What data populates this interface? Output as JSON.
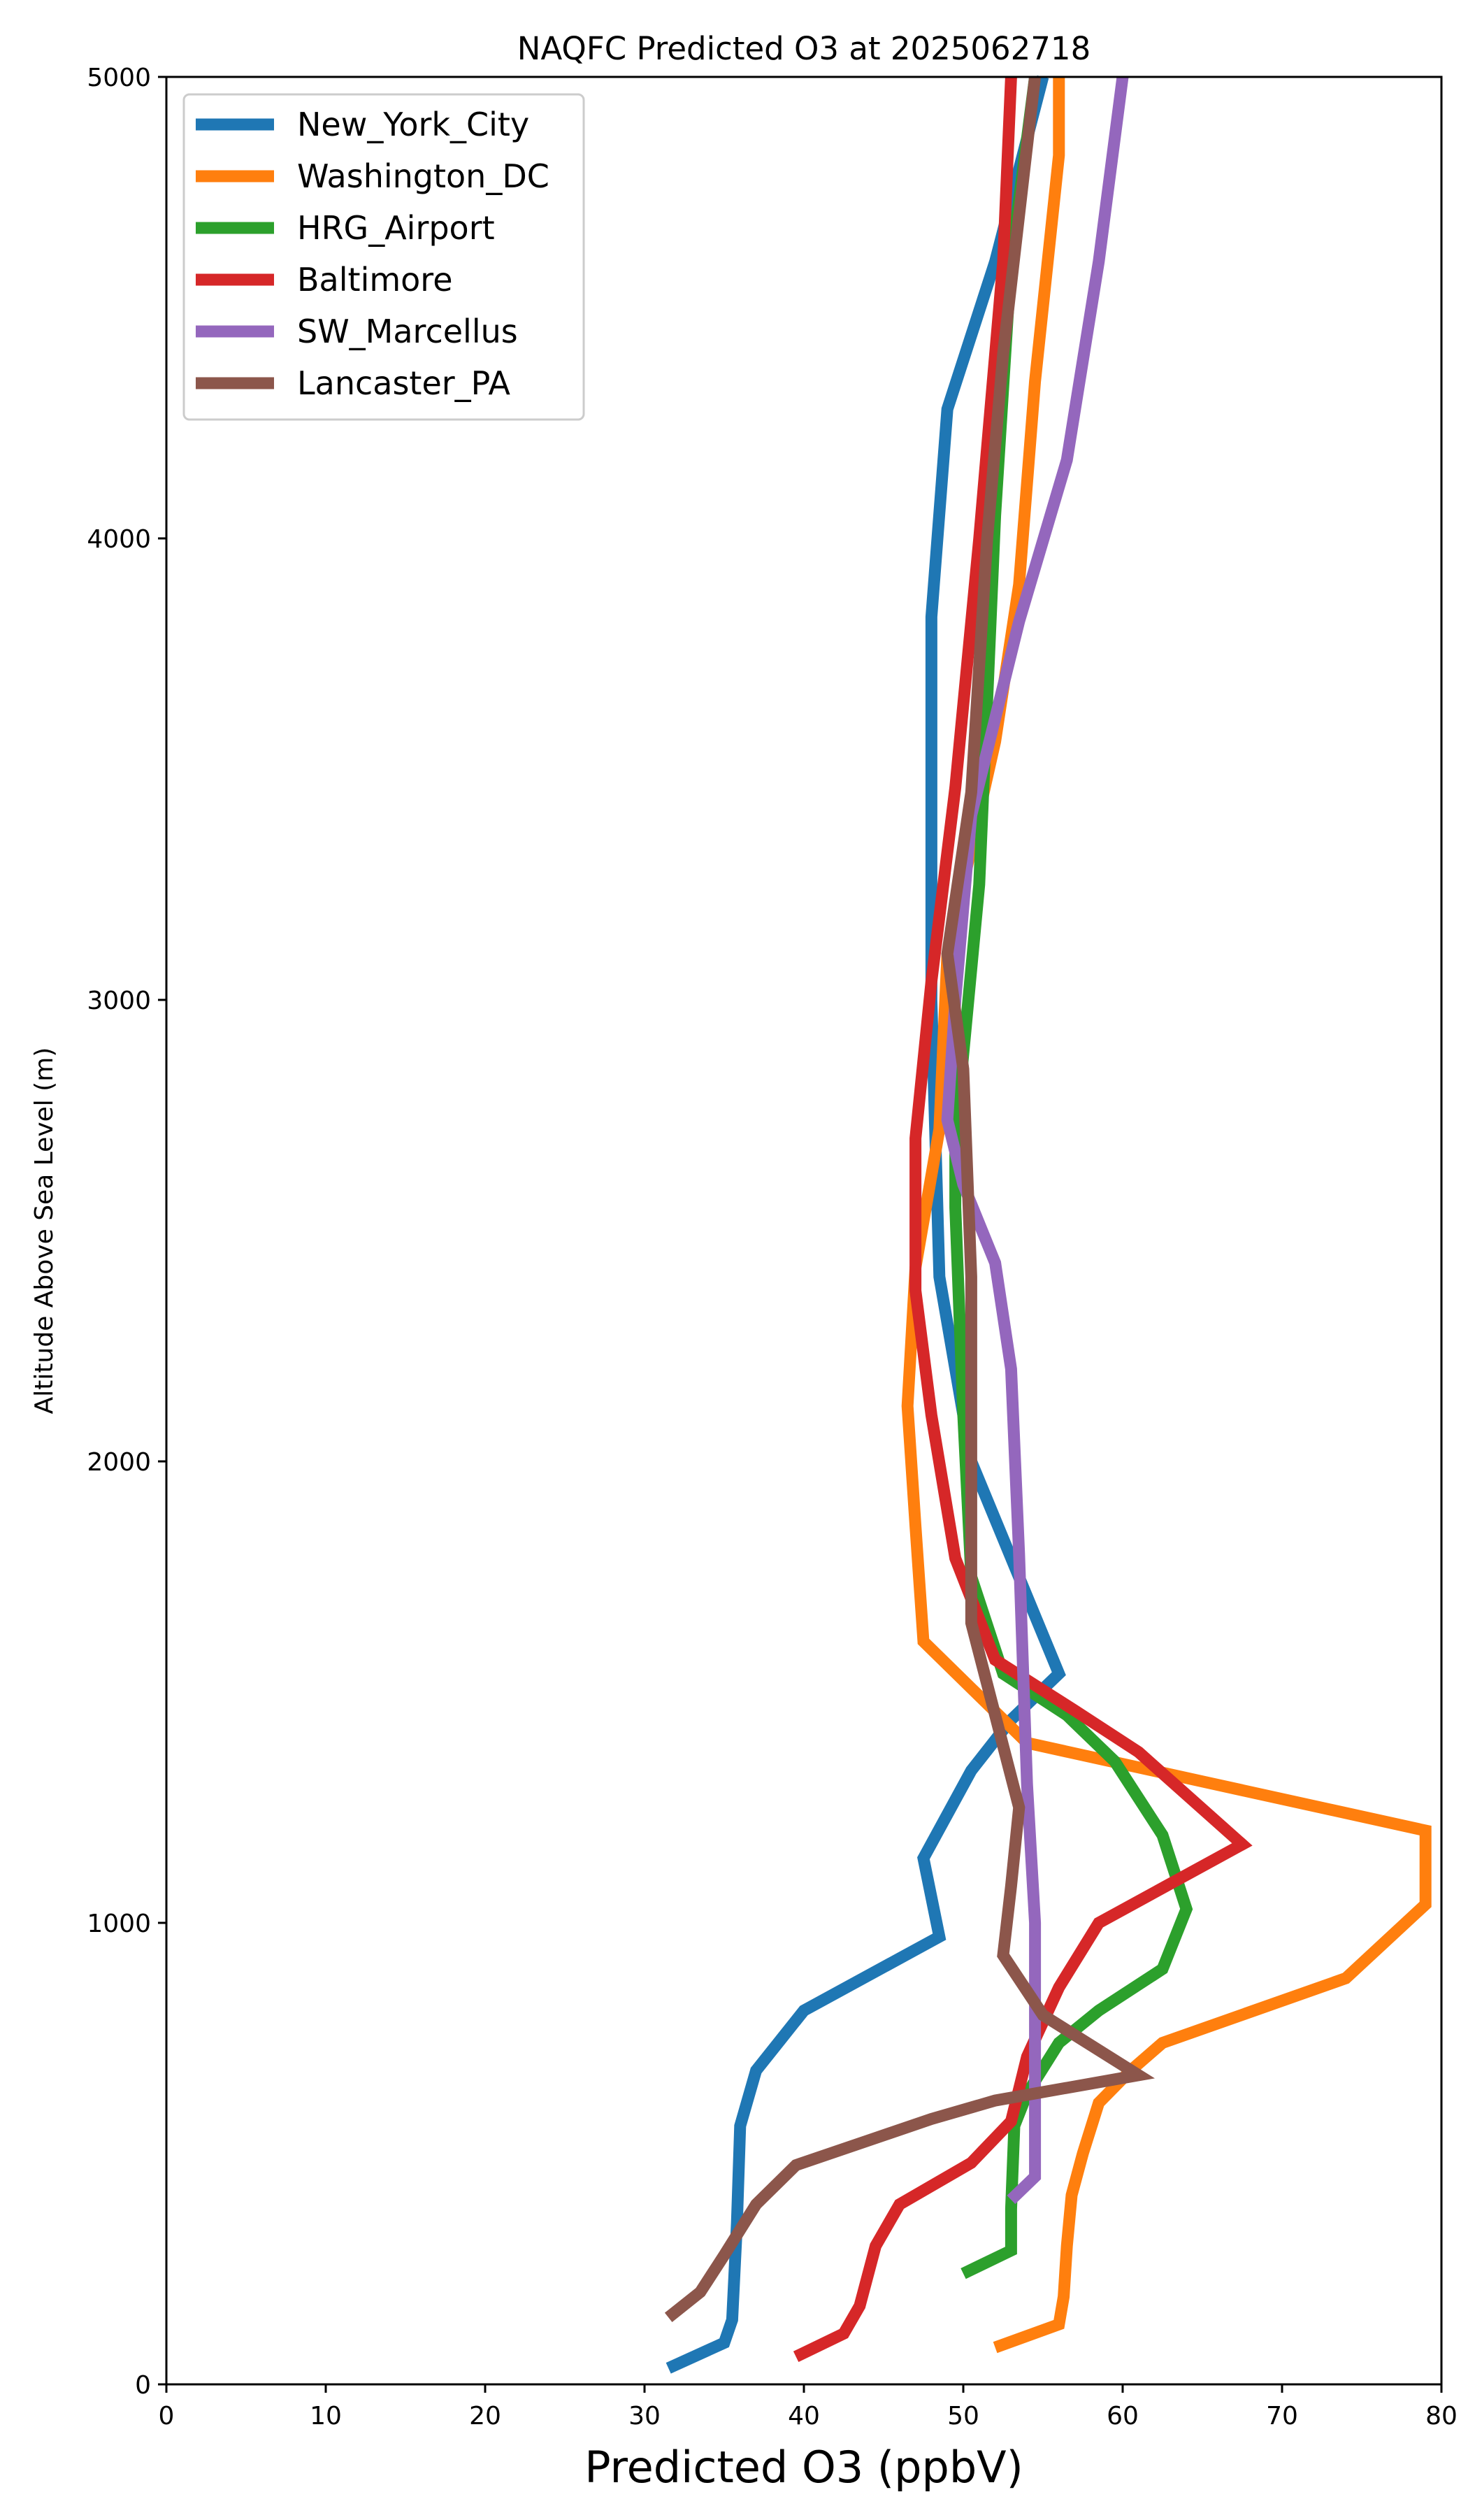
{
  "chart_data": {
    "type": "line",
    "title": "NAQFC Predicted O3 at 2025062718",
    "xlabel": "Predicted O3 (ppbV)",
    "ylabel": "Altitude Above Sea Level (m)",
    "xlim": [
      0,
      80
    ],
    "ylim": [
      0,
      5000
    ],
    "xticks": [
      "0",
      "10",
      "20",
      "30",
      "40",
      "50",
      "60",
      "70",
      "80"
    ],
    "yticks": [
      "0",
      "1000",
      "2000",
      "3000",
      "4000",
      "5000"
    ],
    "grid": false,
    "legend_position": "top-left",
    "series": [
      {
        "name": "New_York_City",
        "color": "#1f77b4",
        "points": [
          [
            31.5,
            35
          ],
          [
            35,
            90
          ],
          [
            35.5,
            140
          ],
          [
            35.8,
            350
          ],
          [
            36,
            560
          ],
          [
            37,
            680
          ],
          [
            40,
            810
          ],
          [
            48.5,
            970
          ],
          [
            47.5,
            1140
          ],
          [
            50.5,
            1330
          ],
          [
            53,
            1440
          ],
          [
            56,
            1540
          ],
          [
            50.5,
            2000
          ],
          [
            48.5,
            2400
          ],
          [
            48,
            3000
          ],
          [
            48,
            3830
          ],
          [
            49,
            4280
          ],
          [
            52,
            4600
          ],
          [
            55,
            5000
          ]
        ]
      },
      {
        "name": "Washington_DC",
        "color": "#ff7f0e",
        "points": [
          [
            52,
            80
          ],
          [
            56,
            130
          ],
          [
            56.3,
            190
          ],
          [
            56.5,
            300
          ],
          [
            56.8,
            410
          ],
          [
            57.5,
            500
          ],
          [
            58.5,
            610
          ],
          [
            60.5,
            680
          ],
          [
            62.5,
            740
          ],
          [
            74,
            880
          ],
          [
            79,
            1040
          ],
          [
            79,
            1200
          ],
          [
            54,
            1390
          ],
          [
            47.5,
            1610
          ],
          [
            47,
            1860
          ],
          [
            46.5,
            2120
          ],
          [
            47,
            2420
          ],
          [
            48.5,
            2720
          ],
          [
            49,
            3100
          ],
          [
            52,
            3560
          ],
          [
            53.5,
            3900
          ],
          [
            54.5,
            4340
          ],
          [
            56,
            4830
          ],
          [
            56,
            5000
          ]
        ]
      },
      {
        "name": "HRG_Airport",
        "color": "#2ca02c",
        "points": [
          [
            50,
            240
          ],
          [
            53,
            290
          ],
          [
            53,
            380
          ],
          [
            53.2,
            560
          ],
          [
            54,
            630
          ],
          [
            56,
            740
          ],
          [
            58.5,
            810
          ],
          [
            62.5,
            900
          ],
          [
            64,
            1030
          ],
          [
            62.5,
            1190
          ],
          [
            59.5,
            1350
          ],
          [
            56.5,
            1450
          ],
          [
            52.5,
            1540
          ],
          [
            50.5,
            1750
          ],
          [
            50,
            2100
          ],
          [
            49.5,
            2550
          ],
          [
            49.5,
            2700
          ],
          [
            51,
            3250
          ],
          [
            52,
            4050
          ],
          [
            53,
            4600
          ],
          [
            54.5,
            5000
          ]
        ]
      },
      {
        "name": "Baltimore",
        "color": "#d62728",
        "points": [
          [
            39.5,
            60
          ],
          [
            42.5,
            110
          ],
          [
            43.5,
            170
          ],
          [
            44.5,
            300
          ],
          [
            46,
            390
          ],
          [
            50.5,
            480
          ],
          [
            53,
            570
          ],
          [
            54,
            710
          ],
          [
            56,
            860
          ],
          [
            58.5,
            1000
          ],
          [
            67.5,
            1170
          ],
          [
            61,
            1370
          ],
          [
            57,
            1460
          ],
          [
            52,
            1570
          ],
          [
            49.5,
            1790
          ],
          [
            48,
            2100
          ],
          [
            47,
            2370
          ],
          [
            47,
            2700
          ],
          [
            48,
            3040
          ],
          [
            49.5,
            3460
          ],
          [
            51,
            4000
          ],
          [
            52.5,
            4600
          ],
          [
            53,
            5000
          ]
        ]
      },
      {
        "name": "SW_Marcellus",
        "color": "#9467bd",
        "points": [
          [
            53,
            400
          ],
          [
            54.5,
            450
          ],
          [
            54.5,
            800
          ],
          [
            54.5,
            1000
          ],
          [
            54,
            1300
          ],
          [
            53.5,
            1800
          ],
          [
            53,
            2200
          ],
          [
            52,
            2430
          ],
          [
            50,
            2600
          ],
          [
            49,
            2740
          ],
          [
            49.5,
            3000
          ],
          [
            50.5,
            3400
          ],
          [
            53.5,
            3820
          ],
          [
            56.5,
            4170
          ],
          [
            58.5,
            4600
          ],
          [
            60,
            5000
          ]
        ]
      },
      {
        "name": "Lancaster_PA",
        "color": "#8c564b",
        "points": [
          [
            31.5,
            145
          ],
          [
            33.5,
            200
          ],
          [
            35,
            280
          ],
          [
            37,
            390
          ],
          [
            39.5,
            475
          ],
          [
            48,
            575
          ],
          [
            52,
            615
          ],
          [
            61,
            670
          ],
          [
            55,
            800
          ],
          [
            52.5,
            930
          ],
          [
            53,
            1080
          ],
          [
            53.5,
            1250
          ],
          [
            52,
            1450
          ],
          [
            50.5,
            1650
          ],
          [
            50.5,
            2100
          ],
          [
            50.5,
            2400
          ],
          [
            50,
            2850
          ],
          [
            49,
            3100
          ],
          [
            50.5,
            3450
          ],
          [
            51.5,
            4000
          ],
          [
            52.5,
            4400
          ],
          [
            54.5,
            5000
          ]
        ]
      }
    ]
  }
}
